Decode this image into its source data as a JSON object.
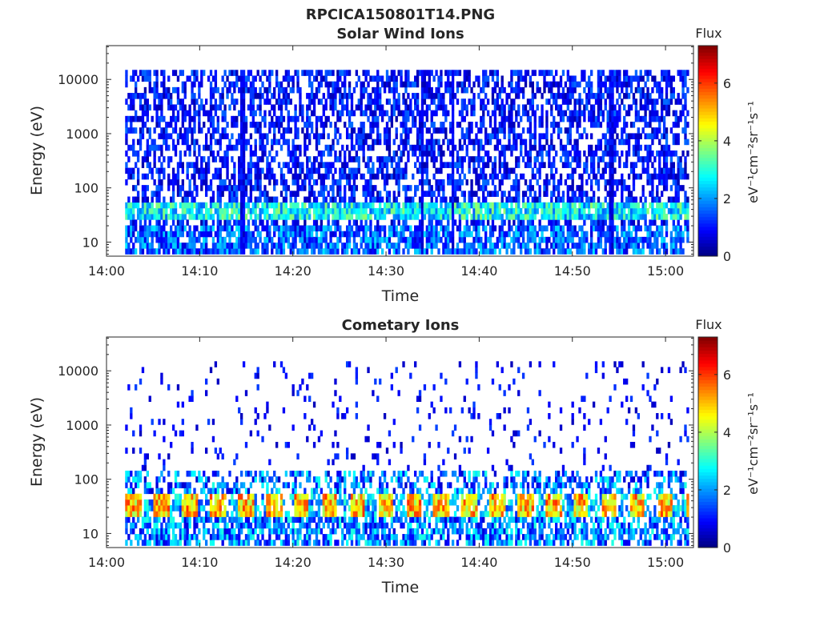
{
  "figure": {
    "title": "RPCICA150801T14.PNG"
  },
  "chart_data": [
    {
      "type": "heatmap",
      "title": "Solar Wind Ions",
      "xlabel": "Time",
      "ylabel": "Energy (eV)",
      "x_ticks": [
        "14:00",
        "14:10",
        "14:20",
        "14:30",
        "14:40",
        "14:50",
        "15:00"
      ],
      "y_ticks": [
        "10",
        "100",
        "1000",
        "10000"
      ],
      "y_scale": "log",
      "x_range": [
        "14:00",
        "15:03"
      ],
      "y_range": [
        5.5,
        42000
      ],
      "data_x_range": [
        "14:02",
        "15:02.5"
      ],
      "data_y_range": [
        6,
        15000
      ],
      "colorbar": {
        "title": "Flux",
        "label": "eV⁻¹cm⁻²sr⁻¹s⁻¹",
        "ticks": [
          "0",
          "2",
          "4",
          "6"
        ],
        "range": [
          0,
          7.3
        ],
        "colormap": "jet"
      },
      "features": {
        "dominant_band_eV": [
          25,
          45
        ],
        "typical_level_band": 3.0,
        "typical_level_background": 1.0,
        "background_fill_fraction": 0.55,
        "vertical_streak_times": [
          "14:14.5",
          "14:33.8",
          "14:37",
          "14:54"
        ]
      }
    },
    {
      "type": "heatmap",
      "title": "Cometary Ions",
      "xlabel": "Time",
      "ylabel": "Energy (eV)",
      "x_ticks": [
        "14:00",
        "14:10",
        "14:20",
        "14:30",
        "14:40",
        "14:50",
        "15:00"
      ],
      "y_ticks": [
        "10",
        "100",
        "1000",
        "10000"
      ],
      "y_scale": "log",
      "x_range": [
        "14:00",
        "15:03"
      ],
      "y_range": [
        5.5,
        42000
      ],
      "data_x_range": [
        "14:02",
        "15:02.5"
      ],
      "data_y_range": [
        6,
        15000
      ],
      "colorbar": {
        "title": "Flux",
        "label": "eV⁻¹cm⁻²sr⁻¹s⁻¹",
        "ticks": [
          "0",
          "2",
          "4",
          "6"
        ],
        "range": [
          0,
          7.3
        ],
        "colormap": "jet"
      },
      "features": {
        "dominant_band_eV": [
          18,
          50
        ],
        "peak_level": 5.8,
        "band_period_minutes": 3.0,
        "upper_edge_eV": 120,
        "sparse_fill_fraction_above_150eV": 0.03
      }
    }
  ]
}
